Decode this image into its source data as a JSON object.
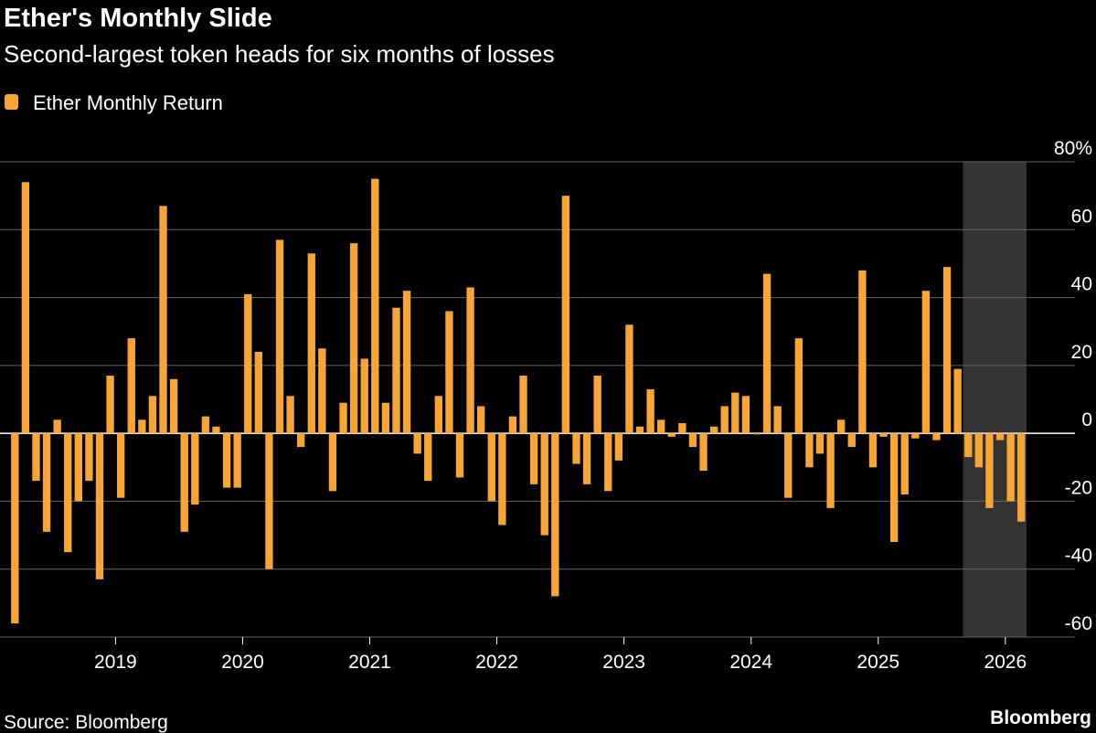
{
  "chart_data": {
    "type": "bar",
    "title": "Ether's Monthly Slide",
    "subtitle": "Second-largest token heads for six months of losses",
    "source": "Source: Bloomberg",
    "brand": "Bloomberg",
    "categories": [
      null,
      null,
      null,
      null,
      null,
      null,
      null,
      null,
      null,
      null,
      "2019",
      null,
      null,
      null,
      null,
      null,
      null,
      null,
      null,
      null,
      null,
      null,
      "2020",
      null,
      null,
      null,
      null,
      null,
      null,
      null,
      null,
      null,
      null,
      null,
      "2021",
      null,
      null,
      null,
      null,
      null,
      null,
      null,
      null,
      null,
      null,
      null,
      "2022",
      null,
      null,
      null,
      null,
      null,
      null,
      null,
      null,
      null,
      null,
      null,
      "2023",
      null,
      null,
      null,
      null,
      null,
      null,
      null,
      null,
      null,
      null,
      null,
      "2024",
      null,
      null,
      null,
      null,
      null,
      null,
      null,
      null,
      null,
      null,
      null,
      "2025",
      null,
      null,
      null,
      null,
      null,
      null,
      null,
      null,
      null,
      null,
      null,
      "2026",
      null
    ],
    "series": [
      {
        "name": "Ether Monthly Return",
        "color": "#f7a535",
        "values": [
          -56,
          74,
          -14,
          -29,
          4,
          -35,
          -20,
          -14,
          -43,
          17,
          -19,
          28,
          4,
          11,
          67,
          16,
          -29,
          -21,
          5,
          2,
          -16,
          -16,
          41,
          24,
          -40,
          57,
          11,
          -4,
          53,
          25,
          -17,
          9,
          56,
          22,
          75,
          9,
          37,
          42,
          -6,
          -14,
          11,
          36,
          -13,
          43,
          8,
          -20,
          -27,
          5,
          17,
          -15,
          -30,
          -48,
          70,
          -9,
          -15,
          17,
          -17,
          -8,
          32,
          2,
          13,
          4,
          -1,
          3,
          -4,
          -11,
          2,
          8,
          12,
          11,
          -0.3,
          47,
          8,
          -19,
          28,
          -10,
          -6,
          -22,
          4,
          -4,
          48,
          -10,
          -1,
          -32,
          -18,
          -1.5,
          42,
          -2,
          49,
          19,
          -7,
          -10,
          -22,
          -2,
          -20,
          -26
        ]
      }
    ],
    "ylim": [
      -60,
      80
    ],
    "yticks": [
      -60,
      -40,
      -20,
      0,
      20,
      40,
      {
        "value": 60,
        "label": "60"
      },
      {
        "value": 80,
        "label": "80%"
      }
    ],
    "grid": true,
    "highlight": {
      "from": 90,
      "to": 95,
      "color": "#333333"
    }
  }
}
